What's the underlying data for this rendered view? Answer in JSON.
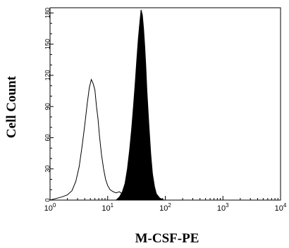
{
  "chart_data": {
    "type": "area",
    "title": "",
    "xlabel": "M-CSF-PE",
    "ylabel": "Cell Count",
    "x_scale": "log",
    "xlim": [
      1,
      10000
    ],
    "ylim": [
      0,
      185
    ],
    "grid": false,
    "y_ticks": [
      0,
      30,
      60,
      90,
      120,
      150,
      180
    ],
    "y_tick_labels": [
      "0",
      "30",
      "60",
      "90",
      "120",
      "150",
      "180"
    ],
    "x_ticks": [
      1,
      10,
      100,
      1000,
      10000
    ],
    "x_tick_labels": [
      {
        "base": "10",
        "exp": "0"
      },
      {
        "base": "10",
        "exp": "1"
      },
      {
        "base": "10",
        "exp": "2"
      },
      {
        "base": "10",
        "exp": "3"
      },
      {
        "base": "10",
        "exp": "4"
      }
    ],
    "series": [
      {
        "style": "outline",
        "color": "#000000",
        "x": [
          1.0,
          1.6,
          2.0,
          2.4,
          2.8,
          3.2,
          3.6,
          4.0,
          4.4,
          4.8,
          5.2,
          5.6,
          6.0,
          6.4,
          6.8,
          7.2,
          7.8,
          8.5,
          9.2,
          10.0,
          11.0,
          12.5,
          14.0,
          16.0,
          18.0,
          21.0,
          25.0,
          30.0,
          40.0,
          60.0,
          100.0,
          200.0,
          1000.0,
          10000.0
        ],
        "values": [
          0,
          3,
          5,
          9,
          18,
          32,
          52,
          72,
          92,
          108,
          116,
          112,
          106,
          90,
          78,
          62,
          44,
          30,
          20,
          14,
          10,
          8,
          7,
          8,
          6,
          5,
          4,
          2,
          1,
          0,
          0,
          0,
          0,
          0
        ]
      },
      {
        "style": "filled",
        "color": "#000000",
        "x": [
          14.0,
          16.0,
          18.0,
          20.0,
          22.0,
          24.0,
          26.0,
          28.0,
          30.0,
          32.0,
          34.0,
          36.0,
          38.0,
          40.0,
          42.0,
          44.0,
          46.0,
          48.0,
          52.0,
          56.0,
          60.0,
          65.0,
          70.0,
          80.0,
          95.0
        ],
        "values": [
          0,
          3,
          8,
          16,
          30,
          48,
          68,
          90,
          112,
          135,
          155,
          170,
          183,
          178,
          165,
          148,
          128,
          105,
          72,
          44,
          25,
          13,
          6,
          2,
          0
        ]
      }
    ]
  }
}
